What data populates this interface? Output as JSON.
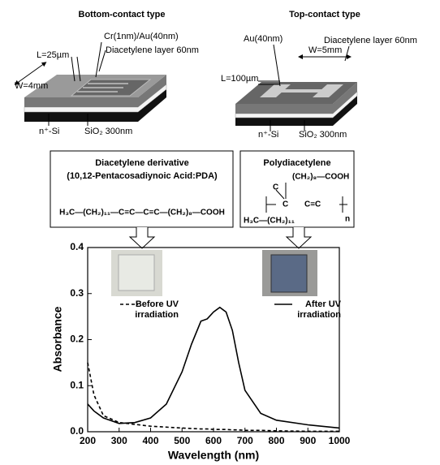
{
  "devices": [
    {
      "title": "Bottom-contact type",
      "electrode": "Cr(1nm)/Au(40nm)",
      "length": "L=25µm",
      "layer": "Diacetylene layer 60nm",
      "width": "W=4mm",
      "gate": "n⁺-Si",
      "oxide": "SiO₂ 300nm"
    },
    {
      "title": "Top-contact type",
      "electrode": "Au(40nm)",
      "length": "L=100µm",
      "layer": "Diacetylene layer  60nm",
      "width": "W=5mm",
      "gate": "n⁺-Si",
      "oxide": "SiO₂ 300nm"
    }
  ],
  "monomer": {
    "title": "Diacetylene derivative",
    "subtitle": "(10,12-Pentacosadiynoic Acid:PDA)",
    "formula": "H₃C—(CH₂)₁₁—C≡C—C≡C—(CH₂)₈—COOH"
  },
  "polymer": {
    "title": "Polydiacetylene",
    "side_top": "(CH₂)₈—COOH",
    "atom_1": "C",
    "atom_2": "C",
    "triple": "C≡C",
    "repeat": "n",
    "side_bottom": "H₃C—(CH₂)₁₁"
  },
  "chart_data": {
    "type": "line",
    "xlabel": "Wavelength (nm)",
    "ylabel": "Absorbance",
    "x": [
      200,
      220,
      250,
      300,
      350,
      400,
      450,
      500,
      530,
      560,
      580,
      600,
      620,
      640,
      660,
      680,
      700,
      750,
      800,
      900,
      1000
    ],
    "series": [
      {
        "name": "Before UV irradiation",
        "color": "#000000",
        "line_style": "dashed",
        "values": [
          0.15,
          0.08,
          0.035,
          0.02,
          0.016,
          0.012,
          0.01,
          0.008,
          0.007,
          0.006,
          0.006,
          0.005,
          0.005,
          0.005,
          0.004,
          0.004,
          0.003,
          0.003,
          0.002,
          0.001,
          0.001
        ]
      },
      {
        "name": "After UV irradiation",
        "color": "#000000",
        "line_style": "solid",
        "values": [
          0.06,
          0.045,
          0.03,
          0.018,
          0.02,
          0.03,
          0.06,
          0.13,
          0.19,
          0.24,
          0.245,
          0.26,
          0.27,
          0.26,
          0.22,
          0.15,
          0.09,
          0.04,
          0.025,
          0.015,
          0.008
        ]
      }
    ],
    "xlim": [
      200,
      1000
    ],
    "ylim": [
      0,
      0.4
    ],
    "xticks": [
      200,
      300,
      400,
      500,
      600,
      700,
      800,
      900,
      1000
    ],
    "yticks": [
      {
        "value": 0,
        "label": "0.0"
      },
      0.1,
      0.2,
      0.3,
      0.4
    ]
  }
}
